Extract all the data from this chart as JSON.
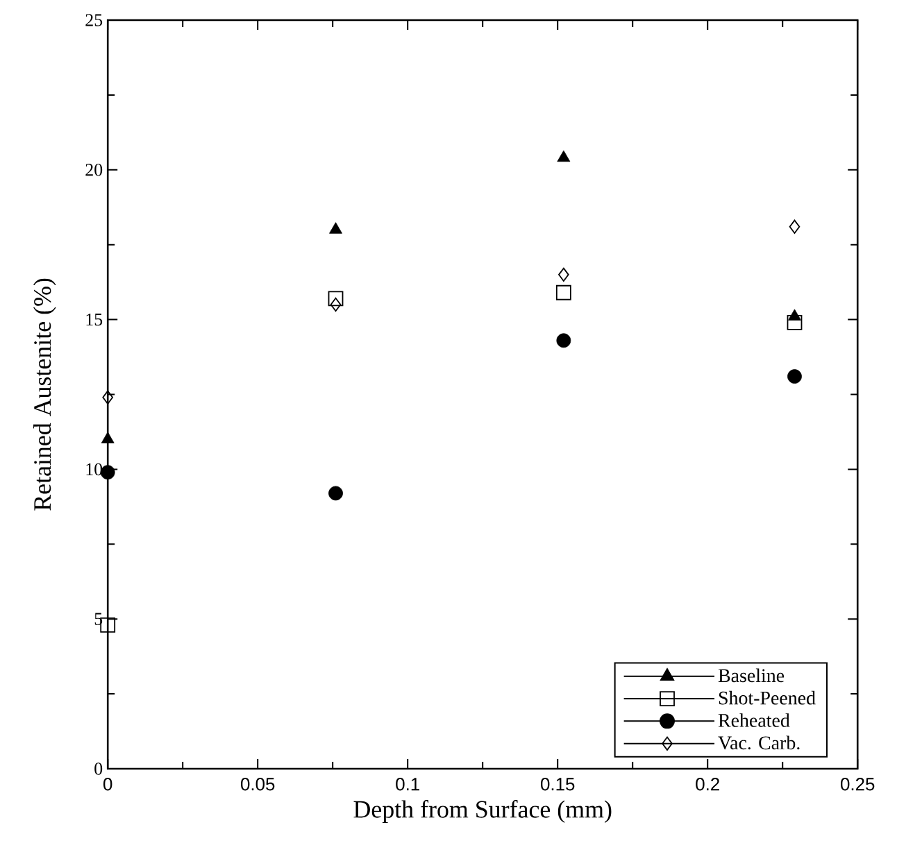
{
  "chart_data": {
    "type": "scatter",
    "xlabel": "Depth from Surface (mm)",
    "ylabel": "Retained Austenite (%)",
    "x": [
      0,
      0.076,
      0.152,
      0.229
    ],
    "series": [
      {
        "name": "Baseline",
        "color": "#000000",
        "marker": "triangle",
        "values": [
          11.0,
          18.0,
          20.4,
          15.1
        ]
      },
      {
        "name": "Shot-Peened",
        "color": "#000000",
        "marker": "square",
        "values": [
          4.8,
          15.7,
          15.9,
          14.9
        ]
      },
      {
        "name": "Reheated",
        "color": "#000000",
        "marker": "circle",
        "values": [
          9.9,
          9.2,
          14.3,
          13.1
        ]
      },
      {
        "name": "Vac. Carb.",
        "color": "#000000",
        "marker": "diamond",
        "values": [
          12.4,
          15.5,
          16.5,
          18.1
        ]
      }
    ],
    "xlim": [
      0,
      0.25
    ],
    "xticks": [
      0,
      0.05,
      0.1,
      0.15,
      0.2,
      0.25
    ],
    "ylim": [
      0,
      25
    ],
    "yticks": [
      0,
      5,
      10,
      15,
      20,
      25
    ],
    "grid": false,
    "legend": "bottom right"
  }
}
